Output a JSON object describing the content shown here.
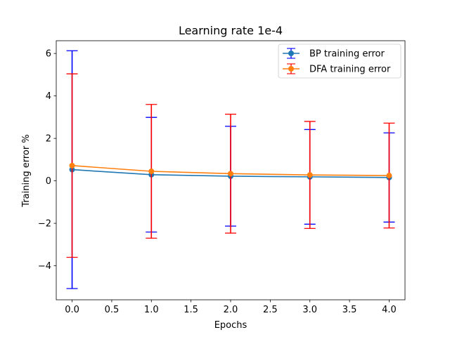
{
  "chart_data": {
    "type": "line",
    "title": "Learning rate 1e-4",
    "xlabel": "Epochs",
    "ylabel": "Training error %",
    "xlim": [
      -0.2,
      4.2
    ],
    "ylim": [
      -5.6,
      6.6
    ],
    "xticks": [
      "0.0",
      "0.5",
      "1.0",
      "1.5",
      "2.0",
      "2.5",
      "3.0",
      "3.5",
      "4.0"
    ],
    "xtick_values": [
      0,
      0.5,
      1,
      1.5,
      2,
      2.5,
      3,
      3.5,
      4
    ],
    "yticks": [
      "−4",
      "−2",
      "0",
      "2",
      "4",
      "6"
    ],
    "ytick_values": [
      -4,
      -2,
      0,
      2,
      4,
      6
    ],
    "grid": false,
    "legend_position": "top-right",
    "x": [
      0,
      1,
      2,
      3,
      4
    ],
    "series": [
      {
        "name": "BP training error",
        "values": [
          0.53,
          0.29,
          0.22,
          0.19,
          0.16
        ],
        "errors": [
          5.6,
          2.7,
          2.35,
          2.23,
          2.1
        ],
        "line_color": "#1f77b4",
        "marker_color": "#1f77b4",
        "errorbar_color": "#0000ff"
      },
      {
        "name": "DFA training error",
        "values": [
          0.72,
          0.45,
          0.34,
          0.28,
          0.25
        ],
        "errors": [
          4.32,
          3.15,
          2.8,
          2.52,
          2.47
        ],
        "line_color": "#ff7f0e",
        "marker_color": "#ff7f0e",
        "errorbar_color": "#ff0000"
      }
    ]
  }
}
